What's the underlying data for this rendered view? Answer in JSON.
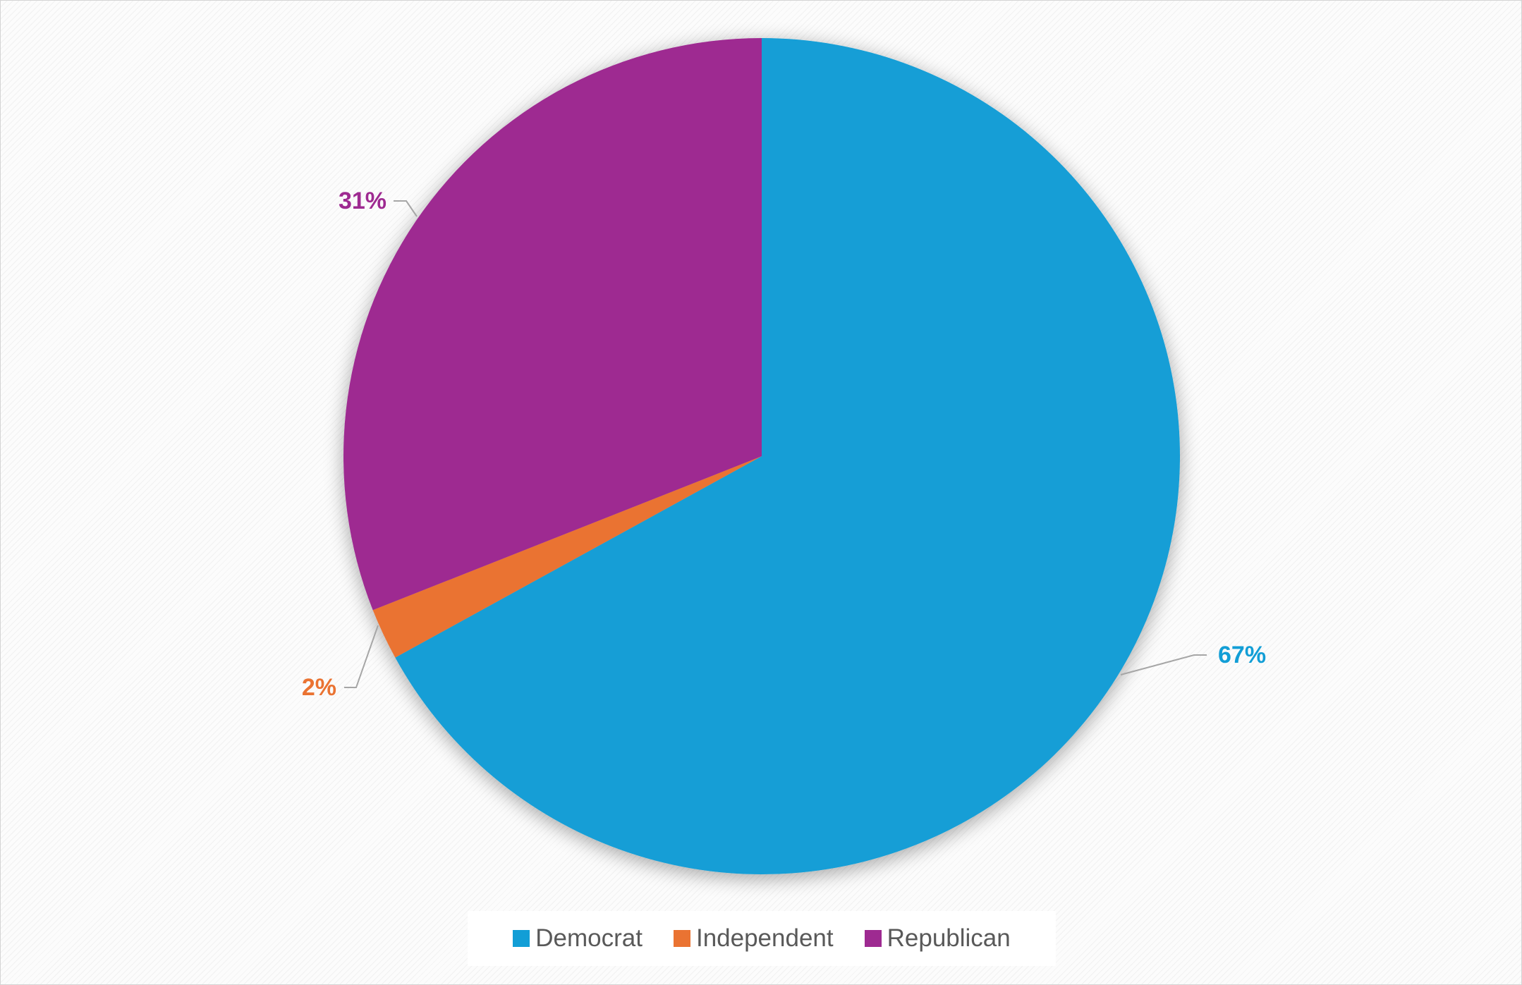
{
  "chart_data": {
    "type": "pie",
    "title": "",
    "categories": [
      "Democrat",
      "Independent",
      "Republican"
    ],
    "values": [
      67,
      2,
      31
    ],
    "unit": "%",
    "data_labels": [
      "67%",
      "2%",
      "31%"
    ],
    "colors": [
      "#129ED6",
      "#EA7332",
      "#9E2A91"
    ],
    "start_angle_deg": 0,
    "direction": "clockwise",
    "legend_position": "bottom",
    "label_placement": "outside-with-leader-lines"
  }
}
